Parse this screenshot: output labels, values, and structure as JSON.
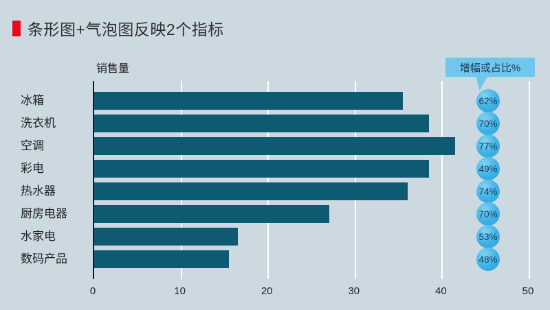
{
  "chart_data": {
    "type": "bar",
    "orientation": "horizontal",
    "title": "条形图+气泡图反映2个指标",
    "axis_label": "销售量",
    "bubble_label": "增幅或占比%",
    "categories": [
      "冰箱",
      "洗衣机",
      "空调",
      "彩电",
      "热水器",
      "厨房电器",
      "水家电",
      "数码产品"
    ],
    "series": [
      {
        "name": "销售量",
        "values": [
          35.5,
          38.5,
          41.5,
          38.5,
          36,
          27,
          16.5,
          15.5
        ]
      },
      {
        "name": "增幅或占比%",
        "values": [
          "62%",
          "70%",
          "77%",
          "49%",
          "74%",
          "70%",
          "53%",
          "48%"
        ]
      }
    ],
    "xlim": [
      0,
      50
    ],
    "xticks": [
      0,
      10,
      20,
      30,
      40,
      50
    ],
    "grid": true,
    "legend": false,
    "colors": {
      "background": "#cdd9e1",
      "bar": "#0e5a72",
      "bubble": "#3bb1e4",
      "callout": "#70c6ed",
      "title_accent": "#e60a1e",
      "gridline": "#ffffff"
    }
  }
}
